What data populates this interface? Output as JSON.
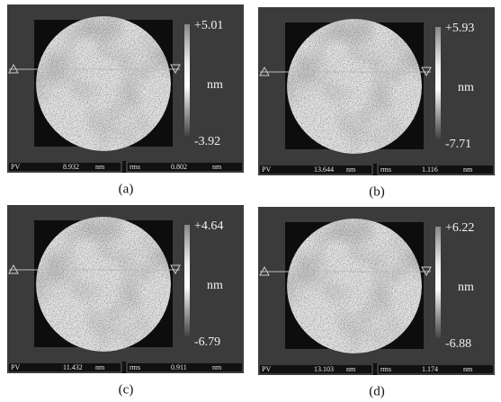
{
  "panels": [
    {
      "max": "+5.01",
      "unit": "nm",
      "min": "-3.92",
      "status": {
        "pv_label": "PV",
        "pv": "8.932",
        "pv_unit": "nm",
        "rms_label": "rms",
        "rms": "0.802",
        "rms_unit": "nm"
      },
      "caption": "(a)"
    },
    {
      "max": "+5.93",
      "unit": "nm",
      "min": "-7.71",
      "status": {
        "pv_label": "PV",
        "pv": "13.644",
        "pv_unit": "nm",
        "rms_label": "rms",
        "rms": "1.116",
        "rms_unit": "nm"
      },
      "caption": "(b)"
    },
    {
      "max": "+4.64",
      "unit": "nm",
      "min": "-6.79",
      "status": {
        "pv_label": "PV",
        "pv": "11.432",
        "pv_unit": "nm",
        "rms_label": "rms",
        "rms": "0.911",
        "rms_unit": "nm"
      },
      "caption": "(c)"
    },
    {
      "max": "+6.22",
      "unit": "nm",
      "min": "-6.88",
      "status": {
        "pv_label": "PV",
        "pv": "13.103",
        "pv_unit": "nm",
        "rms_label": "rms",
        "rms": "1.174",
        "rms_unit": "nm"
      },
      "caption": "(d)"
    }
  ]
}
